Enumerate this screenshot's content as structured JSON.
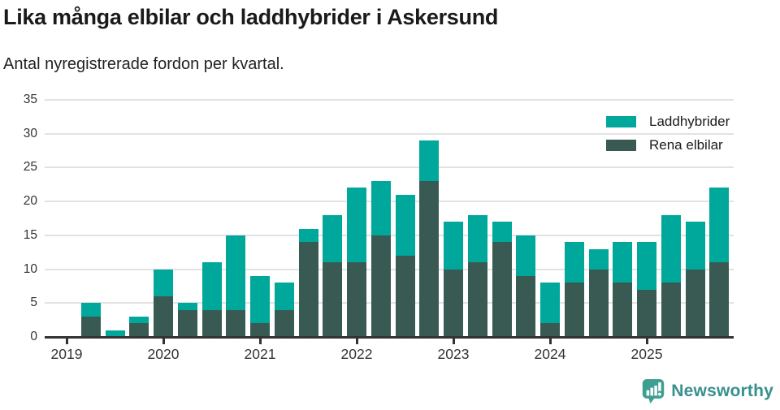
{
  "chart_data": {
    "type": "bar",
    "stacked": true,
    "title": "Lika många elbilar och laddhybrider i Askersund",
    "subtitle": "Antal nyregistrerade fordon per kvartal.",
    "categories": [
      "2019 Q1",
      "2019 Q2",
      "2019 Q3",
      "2019 Q4",
      "2020 Q1",
      "2020 Q2",
      "2020 Q3",
      "2020 Q4",
      "2021 Q1",
      "2021 Q2",
      "2021 Q3",
      "2021 Q4",
      "2022 Q1",
      "2022 Q2",
      "2022 Q3",
      "2022 Q4",
      "2023 Q1",
      "2023 Q2",
      "2023 Q3",
      "2023 Q4",
      "2024 Q1",
      "2024 Q2",
      "2024 Q3",
      "2024 Q4",
      "2025 Q1",
      "2025 Q2",
      "2025 Q3",
      "2025 Q4"
    ],
    "series": [
      {
        "name": "Laddhybrider",
        "color": "#00a79b",
        "values": [
          0,
          2,
          1,
          1,
          4,
          1,
          7,
          11,
          7,
          4,
          2,
          7,
          11,
          8,
          9,
          6,
          7,
          7,
          3,
          6,
          6,
          6,
          3,
          6,
          7,
          10,
          7,
          11
        ]
      },
      {
        "name": "Rena elbilar",
        "color": "#395a52",
        "values": [
          0,
          3,
          0,
          2,
          6,
          4,
          4,
          4,
          2,
          4,
          14,
          11,
          11,
          15,
          12,
          23,
          10,
          11,
          14,
          9,
          2,
          8,
          10,
          8,
          7,
          8,
          10,
          11
        ]
      }
    ],
    "x_tick_labels": [
      "2019",
      "2020",
      "2021",
      "2022",
      "2023",
      "2024",
      "2025"
    ],
    "yticks": [
      0,
      5,
      10,
      15,
      20,
      25,
      30,
      35
    ],
    "ylim": [
      0,
      35
    ],
    "grid": true,
    "legend_position": "top-right",
    "xlabel": "",
    "ylabel": ""
  },
  "colors": {
    "grid": "#e2e2e2",
    "axis": "#333333",
    "title_text": "#1a1a1a"
  },
  "footer": {
    "brand": "Newsworthy",
    "brand_color": "#37908c",
    "logo_color": "#3f9e92"
  }
}
